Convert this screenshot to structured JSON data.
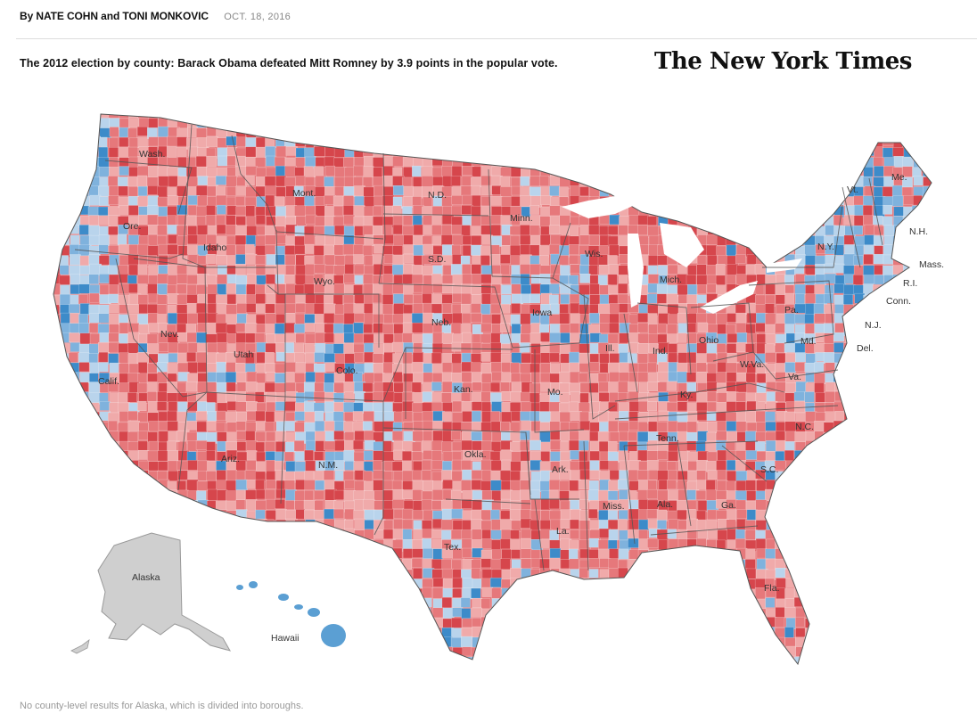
{
  "byline": {
    "authors": "By NATE COHN and TONI MONKOVIC",
    "date": "OCT. 18, 2016"
  },
  "headline": "The 2012 election by county: Barack Obama defeated Mitt Romney by 3.9 points in the popular vote.",
  "logo": "The New York Times",
  "footnote": "No county-level results for Alaska, which is divided into boroughs.",
  "map": {
    "colors": {
      "rep_strong": "#d6464c",
      "rep_mid": "#e6787b",
      "rep_light": "#f0aaaa",
      "dem_light": "#b9d4ec",
      "dem_mid": "#7fb2dd",
      "dem_strong": "#3d8bc9",
      "no_data": "#cfcfcf",
      "state_border": "#555555",
      "label": "#333333"
    },
    "state_labels": [
      "Wash.",
      "Ore.",
      "Idaho",
      "Mont.",
      "N.D.",
      "Minn.",
      "S.D.",
      "Wyo.",
      "Nev.",
      "Calif.",
      "Utah",
      "Colo.",
      "Neb.",
      "Iowa",
      "Wis.",
      "Mich.",
      "Ill.",
      "Ind.",
      "Ohio",
      "Pa.",
      "N.Y.",
      "Vt.",
      "Me.",
      "N.H.",
      "Mass.",
      "R.I.",
      "Conn.",
      "N.J.",
      "Del.",
      "Md.",
      "W.Va.",
      "Va.",
      "Ky.",
      "Mo.",
      "Kan.",
      "Ariz.",
      "N.M.",
      "Okla.",
      "Tex.",
      "Ark.",
      "Tenn.",
      "N.C.",
      "S.C.",
      "Ga.",
      "Ala.",
      "Miss.",
      "La.",
      "Fla.",
      "Alaska",
      "Hawaii"
    ]
  }
}
